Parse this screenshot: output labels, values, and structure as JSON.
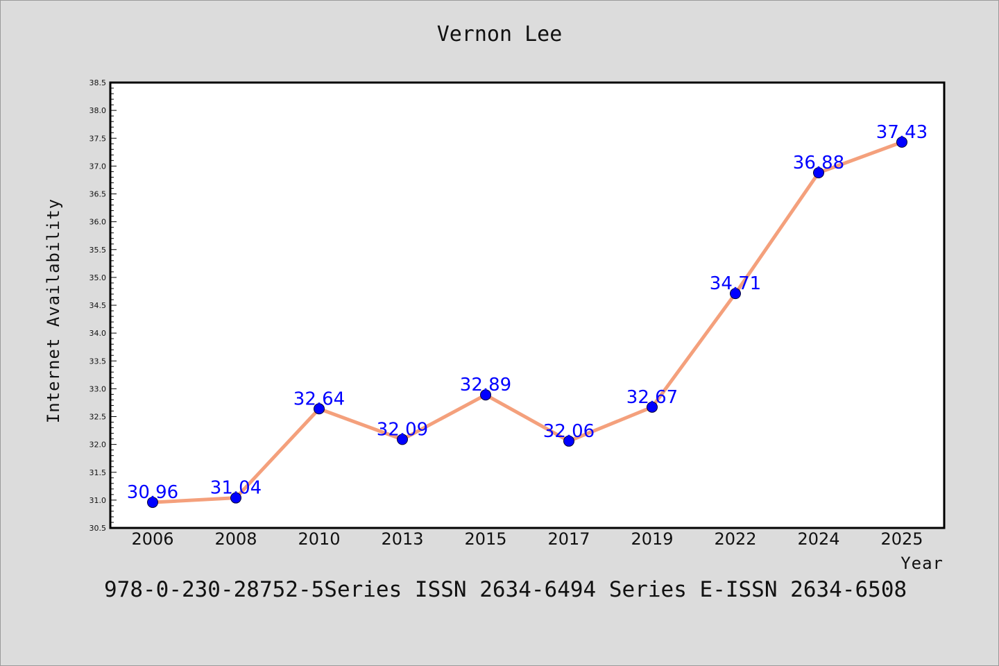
{
  "title": "Vernon Lee",
  "footer": "978-0-230-28752-5Series ISSN 2634-6494 Series E-ISSN 2634-6508",
  "colors": {
    "background": "#dcdcdc",
    "plot_area": "#ffffff",
    "line": "#f4a07c",
    "marker": "#0000ff",
    "data_label": "#0000ff"
  },
  "chart_data": {
    "type": "line",
    "title": "Vernon Lee",
    "xlabel": "Year",
    "ylabel": "Internet Availability",
    "categories": [
      "2006",
      "2008",
      "2010",
      "2013",
      "2015",
      "2017",
      "2019",
      "2022",
      "2024",
      "2025"
    ],
    "series": [
      {
        "values": [
          30.96,
          31.04,
          32.64,
          32.09,
          32.89,
          32.06,
          32.67,
          34.71,
          36.88,
          37.43
        ]
      }
    ],
    "data_labels": [
      "30.96",
      "31.04",
      "32.64",
      "32.09",
      "32.89",
      "32.06",
      "32.67",
      "34.71",
      "36.88",
      "37.43"
    ],
    "ylim": [
      30.5,
      38.5
    ],
    "yticks": [
      "30.5",
      "31.0",
      "31.5",
      "32.0",
      "32.5",
      "33.0",
      "33.5",
      "34.0",
      "34.5",
      "35.0",
      "35.5",
      "36.0",
      "36.5",
      "37.0",
      "37.5",
      "38.0",
      "38.5"
    ],
    "grid": false,
    "legend": "none"
  }
}
